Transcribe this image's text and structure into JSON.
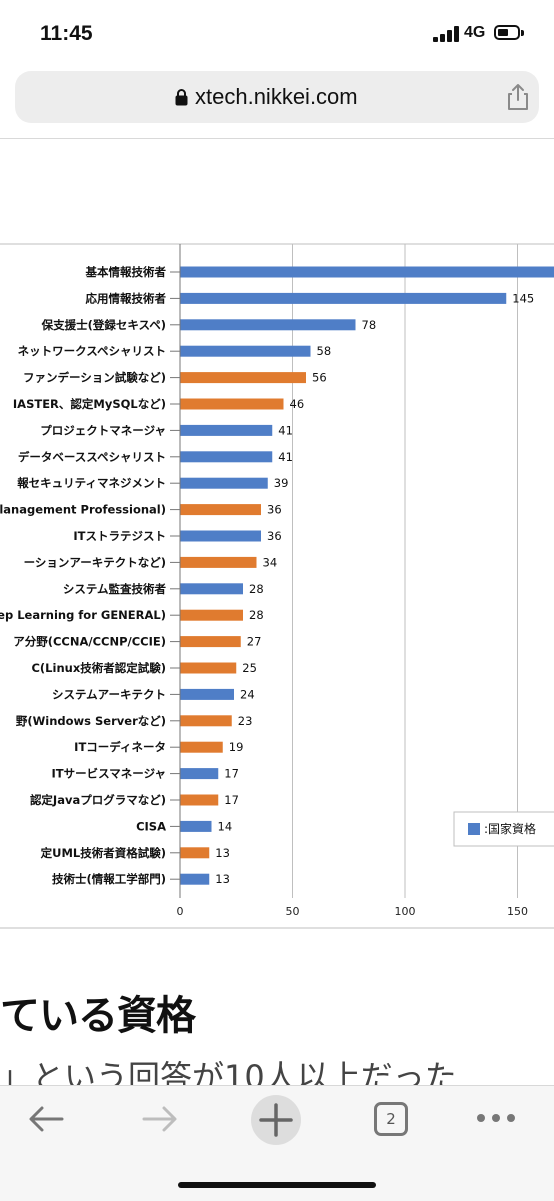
{
  "status": {
    "time": "11:45",
    "network": "4G"
  },
  "browser": {
    "url": "xtech.nikkei.com",
    "tab_count": "2"
  },
  "colors": {
    "national": "#4f7ec7",
    "vendor": "#e07b2f",
    "grid": "#bfbfbf"
  },
  "icons": {
    "lock": "lock-icon",
    "share": "share-icon",
    "back": "back-arrow-icon",
    "forward": "forward-arrow-icon",
    "new_tab": "plus-icon",
    "tabs": "tabs-icon",
    "more": "more-icon"
  },
  "chart_data": {
    "type": "bar",
    "orientation": "horizontal",
    "categories": [
      "基本情報技術者",
      "応用情報技術者",
      "保支援士(登録セキスペ)",
      "ネットワークスペシャリスト",
      "ファンデーション試験など)",
      "IASTER、認定MySQLなど)",
      "プロジェクトマネージャ",
      "データベーススペシャリスト",
      "報セキュリティマネジメント",
      "lanagement Professional)",
      "ITストラテジスト",
      "ーションアーキテクトなど)",
      "システム監査技術者",
      "ep Learning for GENERAL)",
      "ア分野(CCNA/CCNP/CCIE)",
      "C(Linux技術者認定試験)",
      "システムアーキテクト",
      "野(Windows Serverなど)",
      "ITコーディネータ",
      "ITサービスマネージャ",
      "認定Javaプログラマなど)",
      "CISA",
      "定UML技術者資格試験)",
      "技術士(情報工学部門)"
    ],
    "values": [
      null,
      145,
      78,
      58,
      56,
      46,
      41,
      41,
      39,
      36,
      36,
      34,
      28,
      28,
      27,
      25,
      24,
      23,
      19,
      17,
      17,
      14,
      13,
      13
    ],
    "value_labels": [
      "",
      "145",
      "78",
      "58",
      "56",
      "46",
      "41",
      "41",
      "39",
      "36",
      "36",
      "34",
      "28",
      "28",
      "27",
      "25",
      "24",
      "23",
      "19",
      "17",
      "17",
      "14",
      "13",
      "13"
    ],
    "groups": [
      "national",
      "national",
      "national",
      "national",
      "vendor",
      "vendor",
      "national",
      "national",
      "national",
      "vendor",
      "national",
      "vendor",
      "national",
      "vendor",
      "vendor",
      "vendor",
      "national",
      "vendor",
      "vendor",
      "national",
      "vendor",
      "national",
      "vendor",
      "national"
    ],
    "x_ticks": [
      "0",
      "50",
      "100",
      "150"
    ],
    "xlim": [
      0,
      167
    ],
    "legend": [
      {
        "label": ":国家資格"
      }
    ],
    "legend_position": "right",
    "grid": true
  },
  "article": {
    "heading": "ている資格",
    "subtext": "」という回答が10人以上だった"
  }
}
